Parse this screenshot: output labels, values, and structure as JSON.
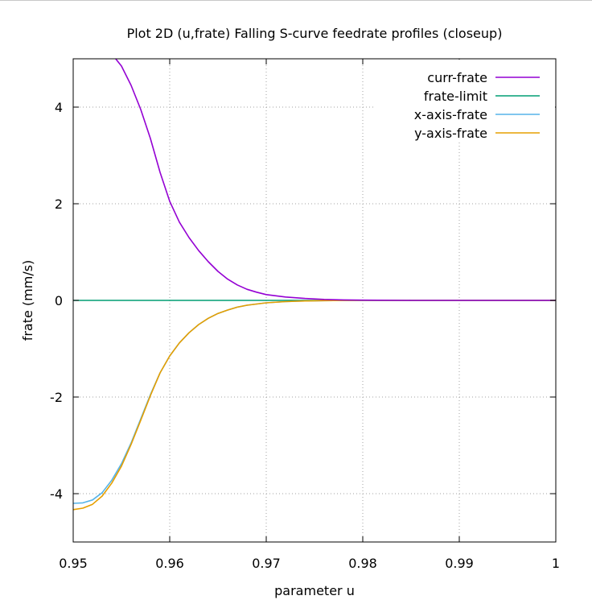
{
  "chart_data": {
    "type": "line",
    "title": "Plot 2D (u,frate) Falling S-curve feedrate profiles (closeup)",
    "xlabel": "parameter u",
    "ylabel": "frate (mm/s)",
    "xlim": [
      0.95,
      1.0
    ],
    "ylim": [
      -5,
      5
    ],
    "xticks": [
      0.95,
      0.96,
      0.97,
      0.98,
      0.99,
      1.0
    ],
    "xtick_labels": [
      "0.95",
      "0.96",
      "0.97",
      "0.98",
      "0.99",
      "1"
    ],
    "yticks": [
      -4,
      -2,
      0,
      2,
      4
    ],
    "ytick_labels": [
      "-4",
      "-2",
      "0",
      "2",
      "4"
    ],
    "grid": true,
    "legend_position": "top-right",
    "series": [
      {
        "name": "curr-frate",
        "color": "#9400d3",
        "x": [
          0.954,
          0.955,
          0.956,
          0.957,
          0.958,
          0.959,
          0.96,
          0.961,
          0.962,
          0.963,
          0.964,
          0.965,
          0.966,
          0.967,
          0.968,
          0.969,
          0.97,
          0.972,
          0.974,
          0.976,
          0.978,
          0.98,
          0.985,
          0.99,
          1.0
        ],
        "y": [
          5.1,
          4.85,
          4.45,
          3.95,
          3.35,
          2.65,
          2.05,
          1.62,
          1.3,
          1.03,
          0.8,
          0.6,
          0.44,
          0.32,
          0.23,
          0.17,
          0.12,
          0.07,
          0.04,
          0.02,
          0.01,
          0.005,
          0.0,
          0.0,
          0.0
        ]
      },
      {
        "name": "frate-limit",
        "color": "#009e73",
        "x": [
          0.95,
          1.0
        ],
        "y": [
          0.0,
          0.0
        ]
      },
      {
        "name": "x-axis-frate",
        "color": "#56b4e9",
        "x": [
          0.95,
          0.951,
          0.952,
          0.953,
          0.954,
          0.955,
          0.956,
          0.957,
          0.958,
          0.959,
          0.96,
          0.961,
          0.962,
          0.963,
          0.964,
          0.965,
          0.966,
          0.967,
          0.968,
          0.97,
          0.972,
          0.974,
          0.976,
          0.978,
          0.98,
          0.985,
          0.99,
          1.0
        ],
        "y": [
          -4.2,
          -4.19,
          -4.13,
          -3.98,
          -3.72,
          -3.38,
          -2.95,
          -2.45,
          -1.95,
          -1.5,
          -1.15,
          -0.88,
          -0.67,
          -0.5,
          -0.37,
          -0.27,
          -0.2,
          -0.14,
          -0.1,
          -0.05,
          -0.025,
          -0.012,
          -0.005,
          -0.002,
          0.0,
          0.0,
          0.0,
          0.0
        ]
      },
      {
        "name": "y-axis-frate",
        "color": "#e69f00",
        "x": [
          0.95,
          0.951,
          0.952,
          0.953,
          0.954,
          0.955,
          0.956,
          0.957,
          0.958,
          0.959,
          0.96,
          0.961,
          0.962,
          0.963,
          0.964,
          0.965,
          0.966,
          0.967,
          0.968,
          0.97,
          0.972,
          0.974,
          0.976,
          0.978,
          0.98,
          0.985,
          0.99,
          1.0
        ],
        "y": [
          -4.33,
          -4.3,
          -4.22,
          -4.05,
          -3.78,
          -3.43,
          -2.98,
          -2.48,
          -1.97,
          -1.5,
          -1.15,
          -0.88,
          -0.67,
          -0.5,
          -0.37,
          -0.27,
          -0.2,
          -0.14,
          -0.1,
          -0.05,
          -0.025,
          -0.012,
          -0.005,
          -0.002,
          0.0,
          0.0,
          0.0,
          0.0
        ]
      }
    ]
  }
}
